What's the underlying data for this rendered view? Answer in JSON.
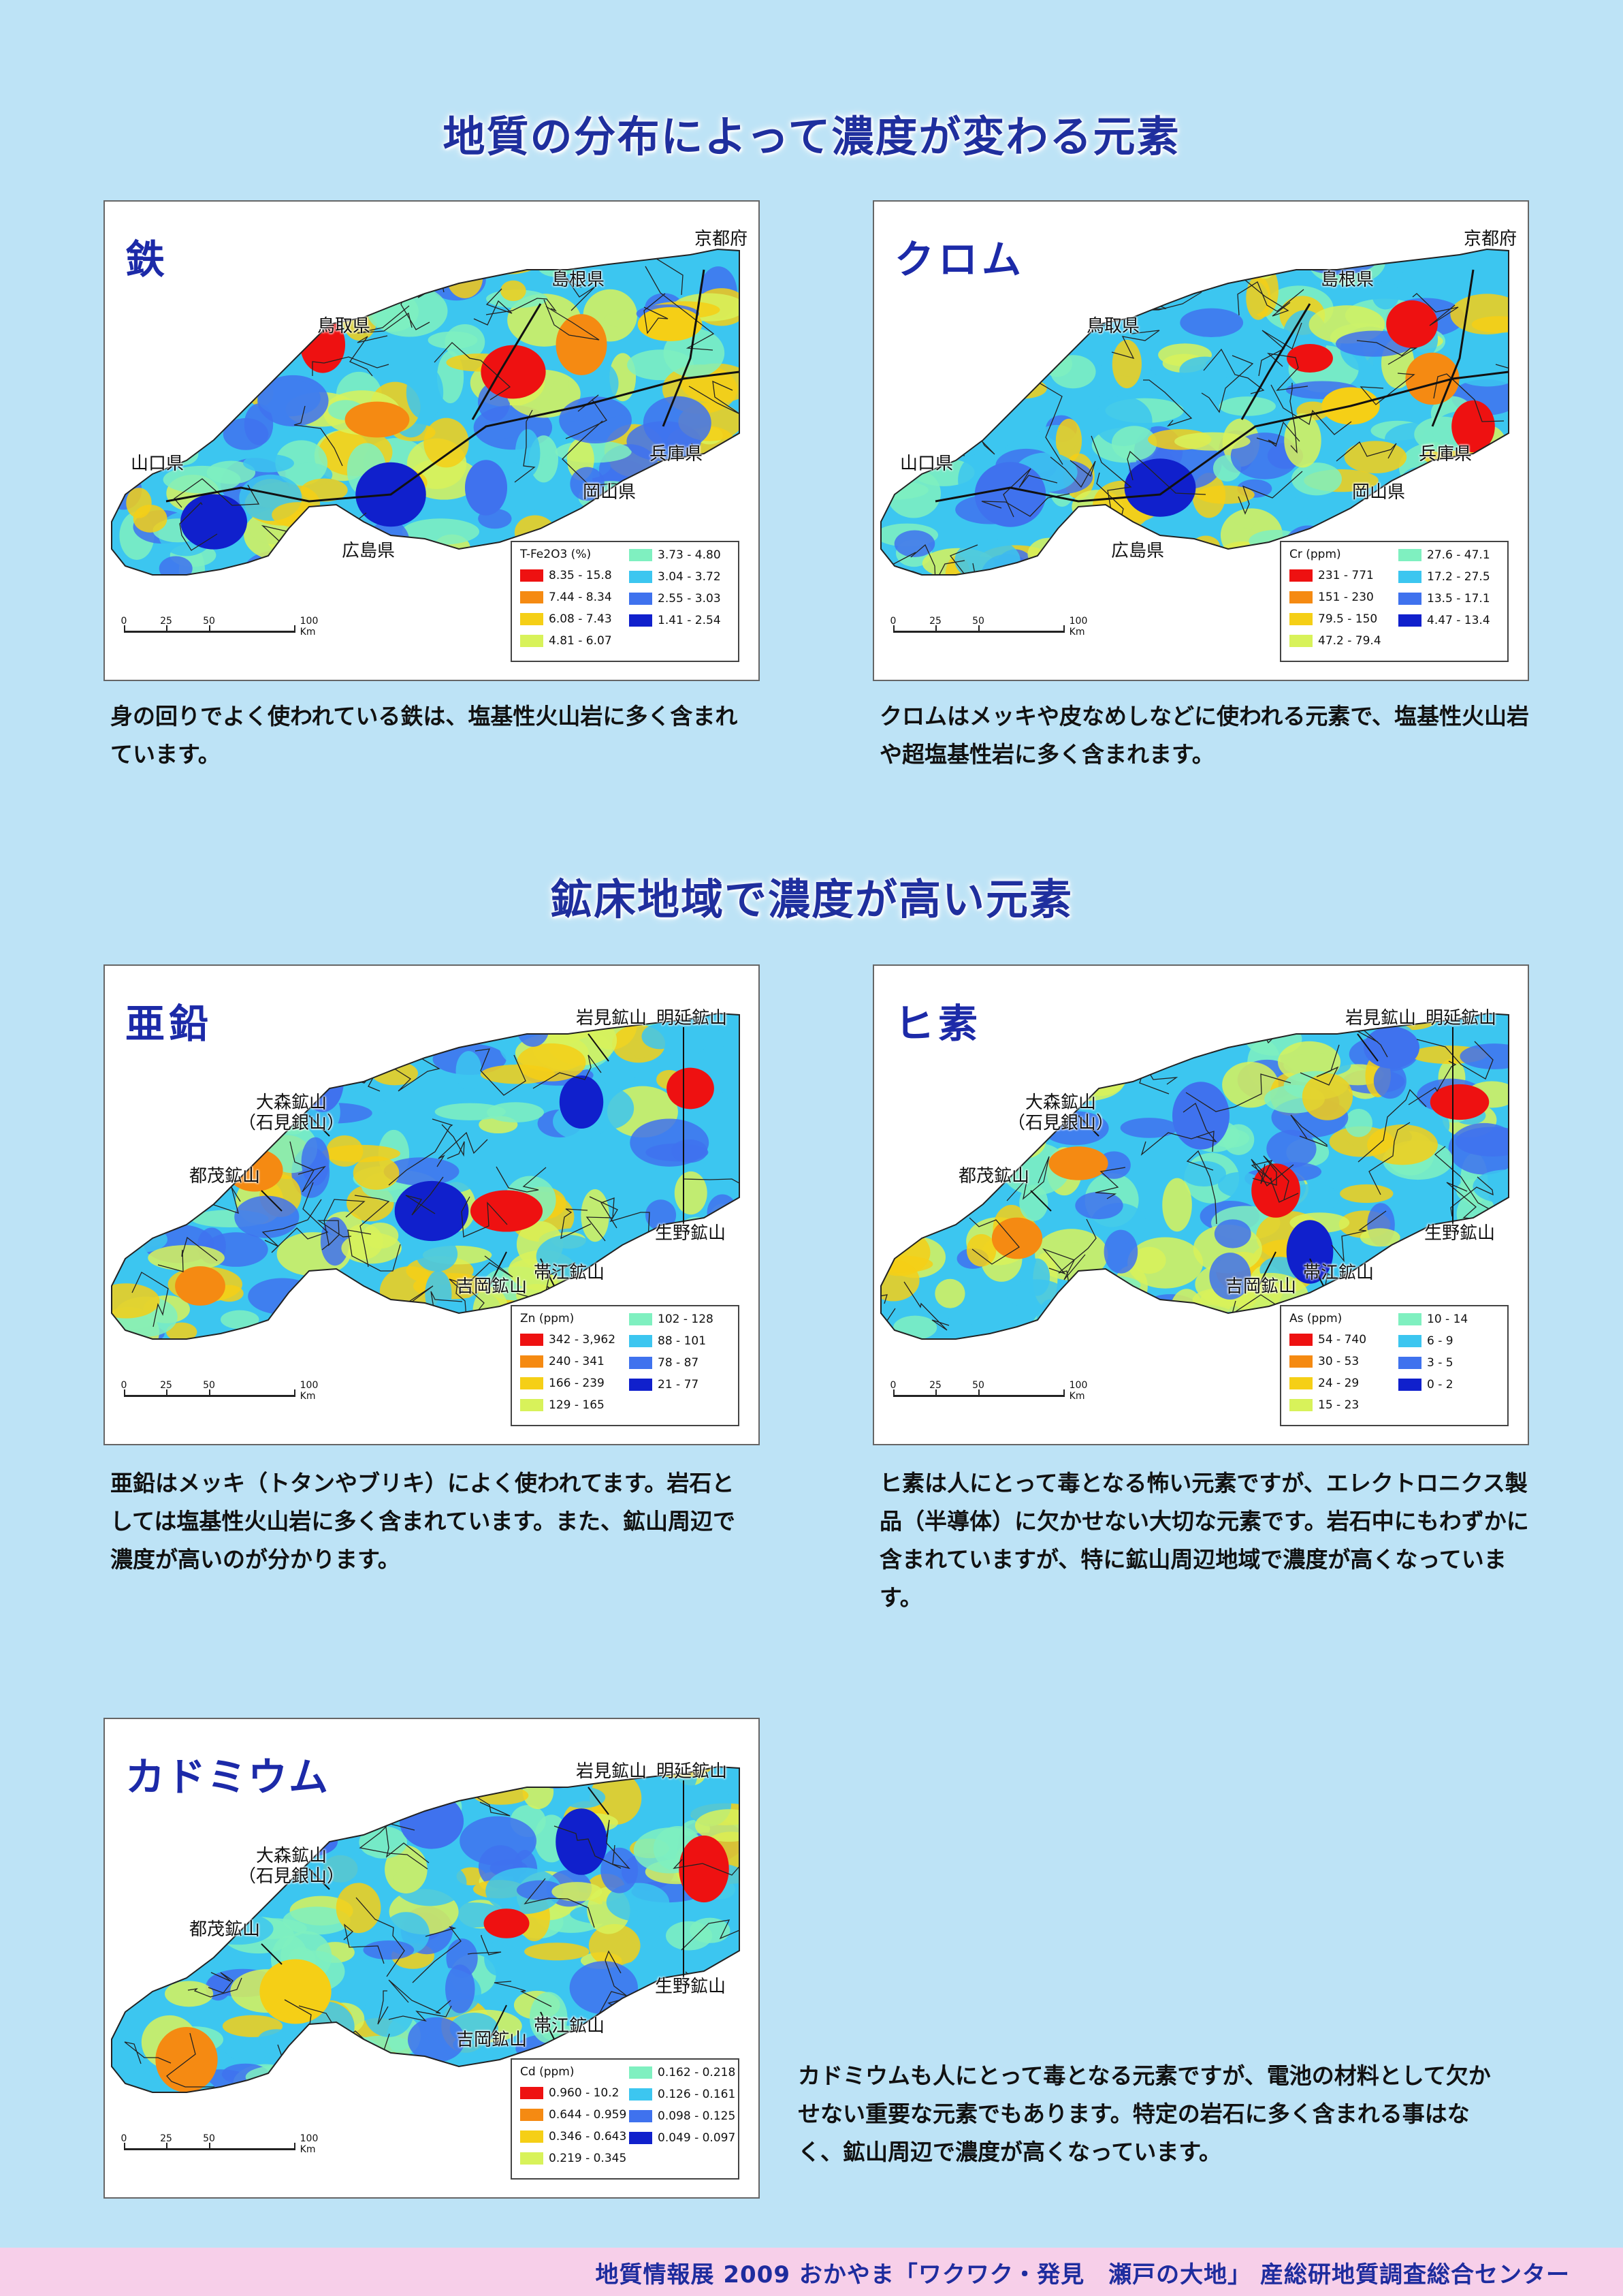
{
  "headings": {
    "section1": "地質の分布によって濃度が変わる元素",
    "section2": "鉱床地域で濃度が高い元素"
  },
  "scale": {
    "l0": "0",
    "l25": "25",
    "l50": "50",
    "l100": "100 Km"
  },
  "panels": {
    "iron": {
      "name": "鉄",
      "places": {
        "kyoto": "京都府",
        "shimane": "島根県",
        "tottori": "鳥取県",
        "yamaguchi": "山口県",
        "hyogo": "兵庫県",
        "okayama": "岡山県",
        "hiroshima": "広島県"
      },
      "legend": {
        "title": "T-Fe2O3 (%)",
        "items": [
          "8.35 - 15.8",
          "7.44 - 8.34",
          "6.08 - 7.43",
          "4.81 - 6.07",
          "3.73 - 4.80",
          "3.04 - 3.72",
          "2.55 - 3.03",
          "1.41 - 2.54"
        ]
      },
      "description": "身の回りでよく使われている鉄は、塩基性火山岩に多く含まれています。"
    },
    "chromium": {
      "name": "クロム",
      "places": {
        "kyoto": "京都府",
        "shimane": "島根県",
        "tottori": "鳥取県",
        "yamaguchi": "山口県",
        "hyogo": "兵庫県",
        "okayama": "岡山県",
        "hiroshima": "広島県"
      },
      "legend": {
        "title": "Cr (ppm)",
        "items": [
          "231 - 771",
          "151 - 230",
          "79.5 - 150",
          "47.2 - 79.4",
          "27.6 - 47.1",
          "17.2 - 27.5",
          "13.5 - 17.1",
          "4.47 - 13.4"
        ]
      },
      "description": "クロムはメッキや皮なめしなどに使われる元素で、塩基性火山岩や超塩基性岩に多く含まれます。"
    },
    "zinc": {
      "name": "亜鉛",
      "places": {
        "iwami": "岩見鉱山",
        "meien": "明延鉱山",
        "omori": "大森鉱山\n（石見銀山）",
        "tsumo": "都茂鉱山",
        "ikuno": "生野鉱山",
        "obie": "帯江鉱山",
        "yoshioka": "吉岡鉱山"
      },
      "legend": {
        "title": "Zn (ppm)",
        "items": [
          "342 - 3,962",
          "240 - 341",
          "166 - 239",
          "129 - 165",
          "102 - 128",
          "88 - 101",
          "78 - 87",
          "21 - 77"
        ]
      },
      "description": "亜鉛はメッキ（トタンやブリキ）によく使われてます。岩石としては塩基性火山岩に多く含まれています。また、鉱山周辺で濃度が高いのが分かります。"
    },
    "arsenic": {
      "name": "ヒ素",
      "places": {
        "iwami": "岩見鉱山",
        "meien": "明延鉱山",
        "omori": "大森鉱山\n（石見銀山）",
        "tsumo": "都茂鉱山",
        "ikuno": "生野鉱山",
        "obie": "帯江鉱山",
        "yoshioka": "吉岡鉱山"
      },
      "legend": {
        "title": "As (ppm)",
        "items": [
          "54 - 740",
          "30 - 53",
          "24 - 29",
          "15 - 23",
          "10 - 14",
          "6 - 9",
          "3 - 5",
          "0 - 2"
        ]
      },
      "description": "ヒ素は人にとって毒となる怖い元素ですが、エレクトロニクス製品（半導体）に欠かせない大切な元素です。岩石中にもわずかに含まれていますが、特に鉱山周辺地域で濃度が高くなっています。"
    },
    "cadmium": {
      "name": "カドミウム",
      "places": {
        "iwami": "岩見鉱山",
        "meien": "明延鉱山",
        "omori": "大森鉱山\n（石見銀山）",
        "tsumo": "都茂鉱山",
        "ikuno": "生野鉱山",
        "obie": "帯江鉱山",
        "yoshioka": "吉岡鉱山"
      },
      "legend": {
        "title": "Cd (ppm)",
        "items": [
          "0.960 - 10.2",
          "0.644 - 0.959",
          "0.346 - 0.643",
          "0.219 - 0.345",
          "0.162 - 0.218",
          "0.126 - 0.161",
          "0.098 - 0.125",
          "0.049 - 0.097"
        ]
      },
      "description": "カドミウムも人にとって毒となる元素ですが、電池の材料として欠かせない重要な元素でもあります。特定の岩石に多く含まれる事はなく、鉱山周辺で濃度が高くなっています。"
    }
  },
  "legend_colors": [
    "#ee1111",
    "#f58a12",
    "#f5cf16",
    "#d8f25a",
    "#7ff0c0",
    "#3cc6f0",
    "#3f72ee",
    "#1020cc"
  ],
  "footer": "地質情報展 2009 おかやま「ワクワク・発見　瀬戸の大地」 産総研地質調査総合センター"
}
